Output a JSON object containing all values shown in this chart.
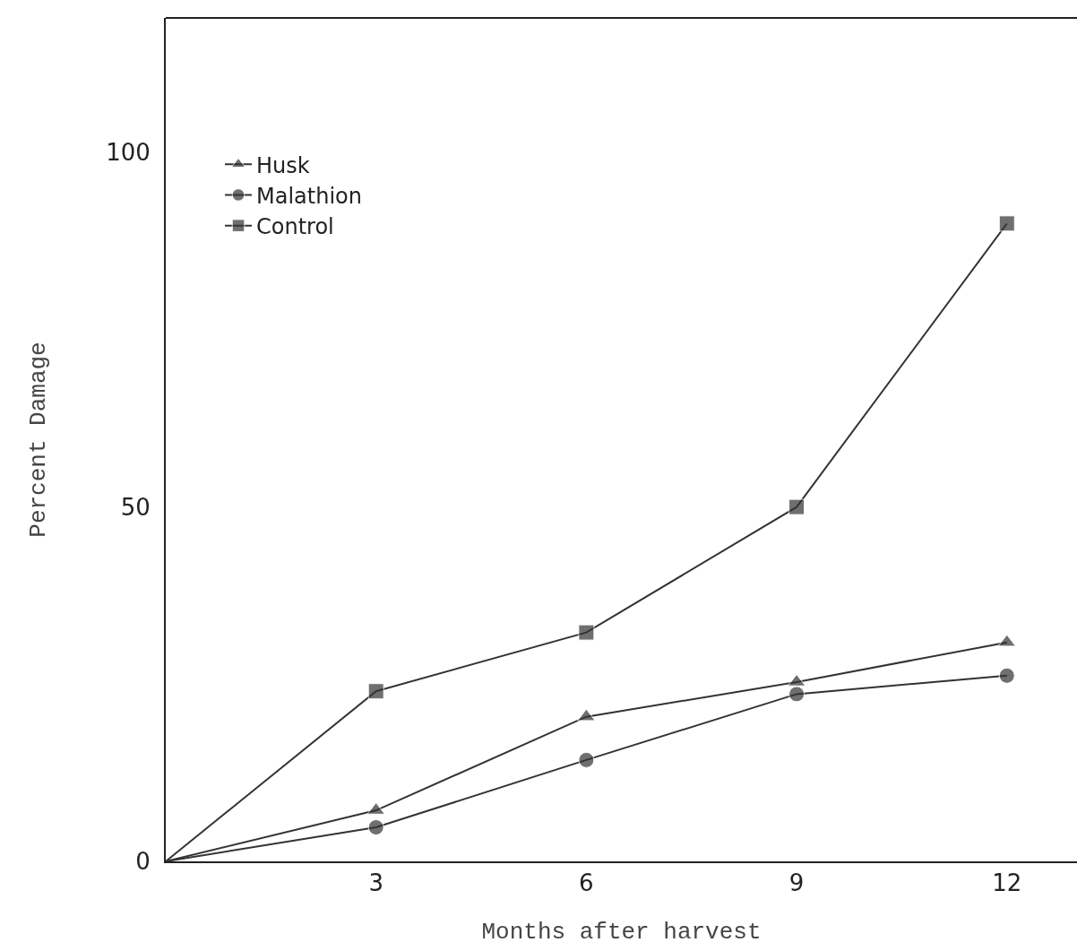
{
  "chart_data": {
    "type": "line",
    "xlabel": "Months after harvest",
    "ylabel": "Percent Damage",
    "x": [
      0,
      3,
      6,
      9,
      12
    ],
    "series": [
      {
        "name": "Husk",
        "color": "#333333",
        "marker": "triangle",
        "values": [
          0,
          7.2,
          20.4,
          25.3,
          30.9
        ]
      },
      {
        "name": "Malathion",
        "color": "#333333",
        "marker": "circle",
        "values": [
          0,
          4.8,
          14.3,
          23.6,
          26.2
        ]
      },
      {
        "name": "Control",
        "color": "#333333",
        "marker": "square",
        "values": [
          0,
          24,
          32.3,
          50,
          90
        ]
      }
    ],
    "xlim": [
      0,
      13
    ],
    "ylim": [
      0,
      119
    ],
    "xticks": [
      3,
      6,
      9,
      12
    ],
    "yticks": [
      0,
      50,
      100
    ],
    "grid": false,
    "legend": "top left",
    "line_style": "solid"
  }
}
